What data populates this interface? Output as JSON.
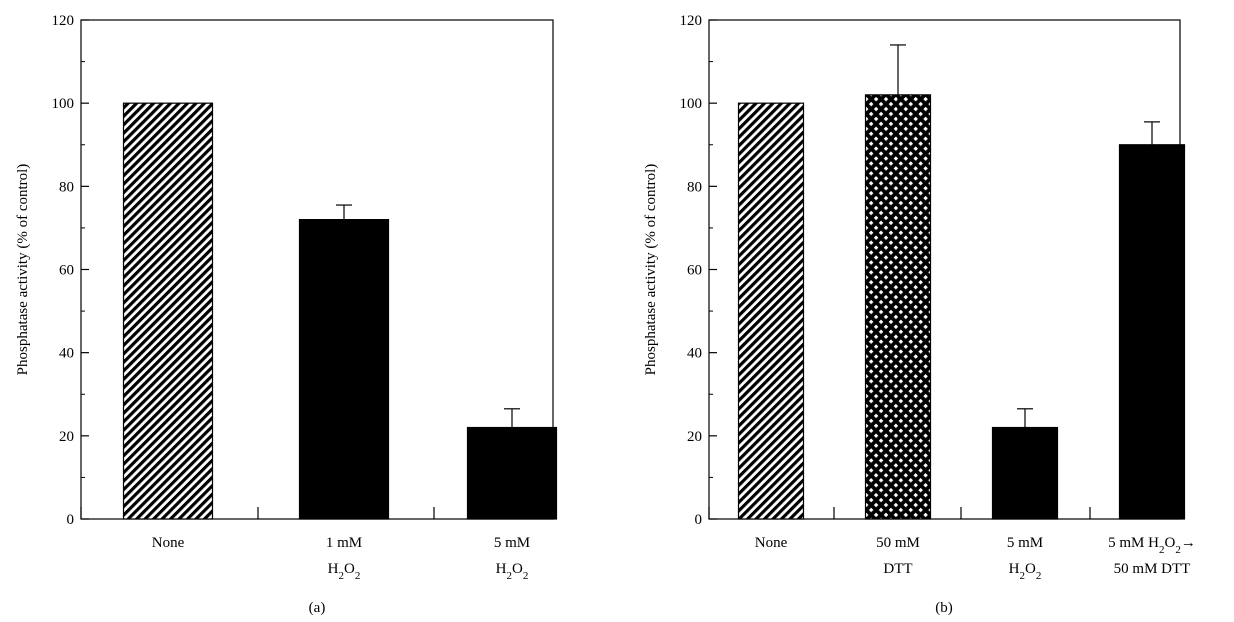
{
  "chart_data": [
    {
      "type": "bar",
      "panel_label": "(a)",
      "ylabel": "Phosphatase activity (% of control)",
      "ylim": [
        0,
        120
      ],
      "yticks": [
        "0",
        "20",
        "40",
        "60",
        "80",
        "100",
        "120"
      ],
      "categories": [
        [
          "None"
        ],
        [
          "1 mM",
          "H2O2"
        ],
        [
          "5 mM",
          "H2O2"
        ]
      ],
      "values": [
        100,
        72,
        22
      ],
      "errors": [
        0,
        3.5,
        4.5
      ],
      "fills": [
        "diagonal-hatch",
        "solid",
        "solid"
      ],
      "grid": false
    },
    {
      "type": "bar",
      "panel_label": "(b)",
      "ylabel": "Phosphatase activity (% of control)",
      "ylim": [
        0,
        120
      ],
      "yticks": [
        "0",
        "20",
        "40",
        "60",
        "80",
        "100",
        "120"
      ],
      "categories": [
        [
          "None"
        ],
        [
          "50 mM",
          "DTT"
        ],
        [
          "5 mM",
          "H2O2"
        ],
        [
          "5 mM H2O2→",
          "50 mM DTT"
        ]
      ],
      "values": [
        100,
        102,
        22,
        90
      ],
      "errors": [
        0,
        12,
        4.5,
        5.5
      ],
      "fills": [
        "diagonal-hatch",
        "cross-hatch",
        "solid",
        "solid"
      ],
      "grid": false
    }
  ]
}
